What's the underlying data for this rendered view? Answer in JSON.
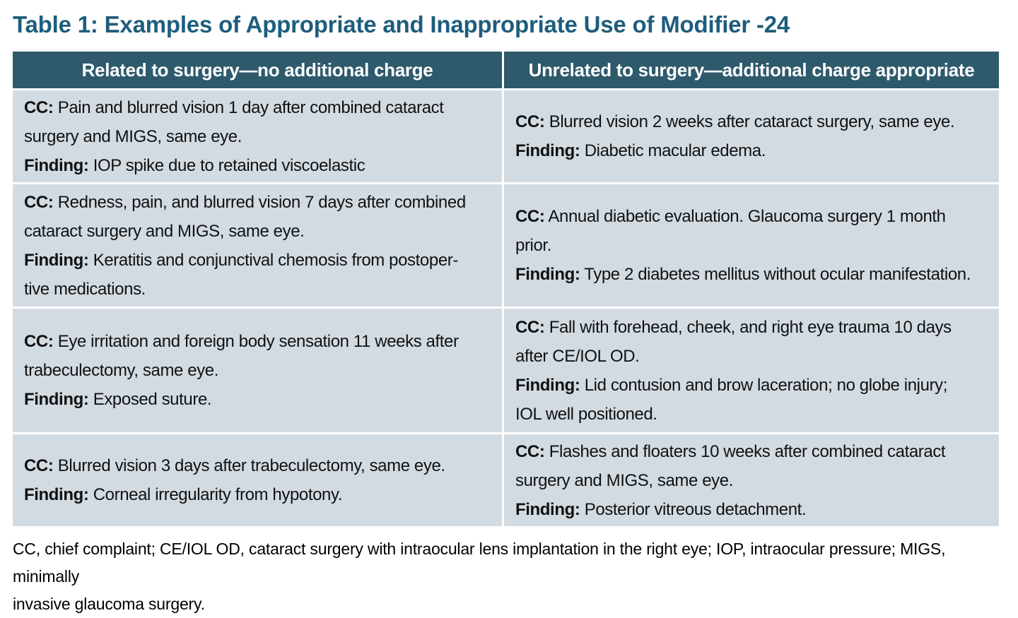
{
  "title": "Table 1: Examples of Appropriate and Inappropriate Use of Modifier -24",
  "table": {
    "labels": {
      "cc": "CC:",
      "finding": "Finding:"
    },
    "columns": [
      {
        "header": "Related to surgery—no additional charge"
      },
      {
        "header": "Unrelated to surgery—additional charge appropriate"
      }
    ],
    "rows": [
      {
        "left": {
          "cc": "Pain and blurred vision 1 day after combined cataract\nsurgery and MIGS, same eye.",
          "finding": "IOP spike due to retained viscoelastic"
        },
        "right": {
          "cc": "Blurred vision 2 weeks after cataract surgery, same eye.",
          "finding": "Diabetic macular edema."
        }
      },
      {
        "left": {
          "cc": "Redness, pain, and blurred vision 7 days after combined\ncataract surgery and MIGS, same eye.",
          "finding": "Keratitis and conjunctival chemosis from postoper-\ntive medications."
        },
        "right": {
          "cc": "Annual diabetic evaluation. Glaucoma surgery 1 month\nprior.",
          "finding": "Type 2 diabetes mellitus without ocular manifestation."
        }
      },
      {
        "left": {
          "cc": "Eye irritation and foreign body sensation 11 weeks after\ntrabeculectomy, same eye.",
          "finding": "Exposed suture."
        },
        "right": {
          "cc": "Fall with forehead, cheek, and right eye trauma 10 days\nafter CE/IOL OD.",
          "finding": "Lid contusion and brow laceration; no globe injury;\nIOL well positioned."
        }
      },
      {
        "left": {
          "cc": "Blurred vision 3 days after trabeculectomy, same eye.",
          "finding": "Corneal irregularity from hypotony."
        },
        "right": {
          "cc": "Flashes and floaters 10 weeks after combined cataract\nsurgery and MIGS, same eye.",
          "finding": "Posterior vitreous detachment."
        }
      }
    ]
  },
  "footnote": "CC, chief complaint; CE/IOL OD, cataract surgery with intraocular lens implantation in the right eye; IOP, intraocular pressure; MIGS, minimally\ninvasive glaucoma surgery.",
  "colors": {
    "header_bg": "#2e5a6c",
    "cell_bg": "#d3dbe2",
    "title_color": "#1e5d7d",
    "header_text": "#ffffff",
    "body_text": "#111111",
    "divider": "#ffffff"
  }
}
